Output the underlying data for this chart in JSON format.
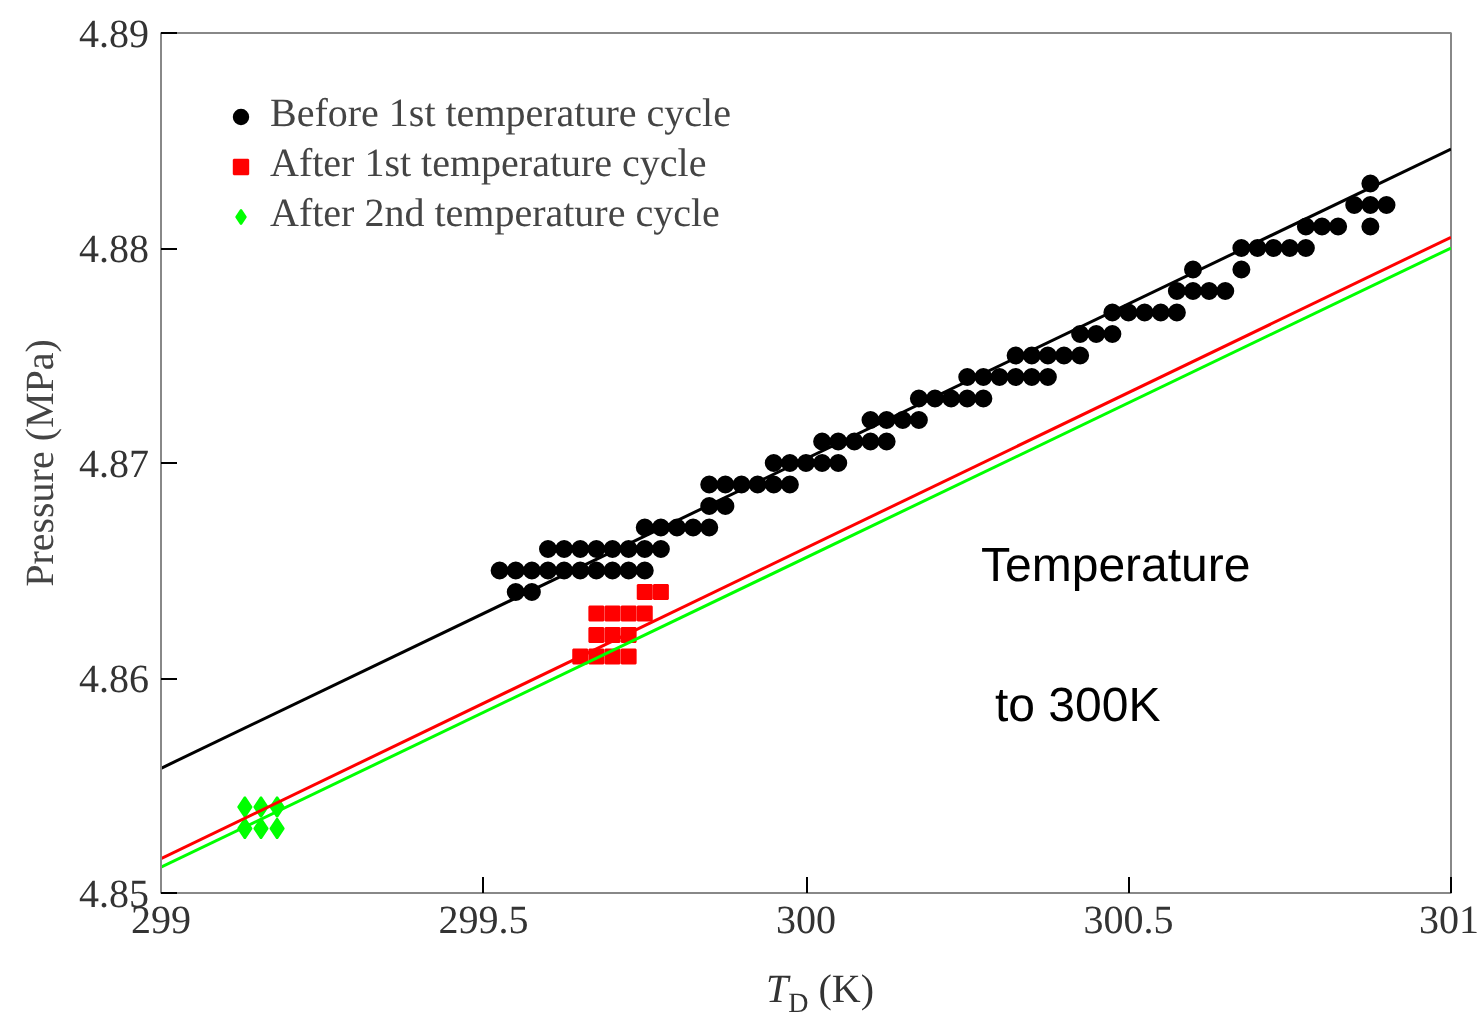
{
  "chart_data": {
    "type": "scatter",
    "xlabel": "T$_{D}$ (K)",
    "ylabel": "Pressure (MPa)",
    "xlim": [
      299,
      301
    ],
    "ylim": [
      4.85,
      4.89
    ],
    "xticks": [
      299,
      299.5,
      300,
      300.5,
      301
    ],
    "yticks": [
      4.85,
      4.86,
      4.87,
      4.88,
      4.89
    ],
    "grid": false,
    "legend": "top left",
    "annotations": [
      "Temperature",
      "to 300K"
    ],
    "series": [
      {
        "name": "Before 1st temperature cycle",
        "color": "#000000",
        "marker": "circle",
        "x": [
          299.55,
          299.575,
          299.525,
          299.55,
          299.575,
          299.6,
          299.625,
          299.65,
          299.675,
          299.7,
          299.725,
          299.75,
          299.6,
          299.625,
          299.65,
          299.675,
          299.7,
          299.725,
          299.75,
          299.775,
          299.75,
          299.775,
          299.8,
          299.825,
          299.85,
          299.85,
          299.875,
          299.85,
          299.875,
          299.9,
          299.925,
          299.95,
          299.975,
          299.95,
          299.975,
          300,
          300.025,
          300.05,
          300.025,
          300.05,
          300.075,
          300.1,
          300.125,
          300.1,
          300.125,
          300.15,
          300.175,
          300.175,
          300.2,
          300.225,
          300.25,
          300.275,
          300.25,
          300.275,
          300.3,
          300.325,
          300.35,
          300.375,
          300.325,
          300.35,
          300.375,
          300.4,
          300.425,
          300.425,
          300.45,
          300.475,
          300.475,
          300.5,
          300.525,
          300.55,
          300.575,
          300.575,
          300.6,
          300.625,
          300.65,
          300.6,
          300.675,
          300.675,
          300.7,
          300.725,
          300.75,
          300.775,
          300.775,
          300.8,
          300.825,
          300.875,
          300.85,
          300.875,
          300.9,
          300.875
        ],
        "values": [
          4.864,
          4.864,
          4.865,
          4.865,
          4.865,
          4.865,
          4.865,
          4.865,
          4.865,
          4.865,
          4.865,
          4.865,
          4.866,
          4.866,
          4.866,
          4.866,
          4.866,
          4.866,
          4.866,
          4.866,
          4.867,
          4.867,
          4.867,
          4.867,
          4.867,
          4.868,
          4.868,
          4.869,
          4.869,
          4.869,
          4.869,
          4.869,
          4.869,
          4.87,
          4.87,
          4.87,
          4.87,
          4.87,
          4.871,
          4.871,
          4.871,
          4.871,
          4.871,
          4.872,
          4.872,
          4.872,
          4.872,
          4.873,
          4.873,
          4.873,
          4.873,
          4.873,
          4.874,
          4.874,
          4.874,
          4.874,
          4.874,
          4.874,
          4.875,
          4.875,
          4.875,
          4.875,
          4.875,
          4.876,
          4.876,
          4.876,
          4.877,
          4.877,
          4.877,
          4.877,
          4.877,
          4.878,
          4.878,
          4.878,
          4.878,
          4.879,
          4.879,
          4.88,
          4.88,
          4.88,
          4.88,
          4.88,
          4.881,
          4.881,
          4.881,
          4.881,
          4.882,
          4.882,
          4.882,
          4.883
        ]
      },
      {
        "name": "After 1st temperature cycle",
        "color": "#ff0000",
        "marker": "square",
        "x": [
          299.75,
          299.775,
          299.675,
          299.7,
          299.725,
          299.75,
          299.675,
          299.7,
          299.725,
          299.65,
          299.675,
          299.7,
          299.725
        ],
        "values": [
          4.864,
          4.864,
          4.863,
          4.863,
          4.863,
          4.863,
          4.862,
          4.862,
          4.862,
          4.861,
          4.861,
          4.861,
          4.861
        ]
      },
      {
        "name": "After 2nd temperature cycle",
        "color": "#00ff00",
        "marker": "diamond",
        "x": [
          299.13,
          299.155,
          299.18,
          299.13,
          299.155,
          299.18
        ],
        "values": [
          4.854,
          4.854,
          4.854,
          4.853,
          4.853,
          4.853
        ]
      },
      {
        "type": "line",
        "color": "#000000",
        "x": [
          299,
          301
        ],
        "values": [
          4.8558,
          4.8846
        ]
      },
      {
        "type": "line",
        "color": "#ff0000",
        "x": [
          299,
          301
        ],
        "values": [
          4.8516,
          4.8805
        ]
      },
      {
        "type": "line",
        "color": "#00ff00",
        "x": [
          299,
          301
        ],
        "values": [
          4.8512,
          4.88
        ]
      }
    ]
  }
}
